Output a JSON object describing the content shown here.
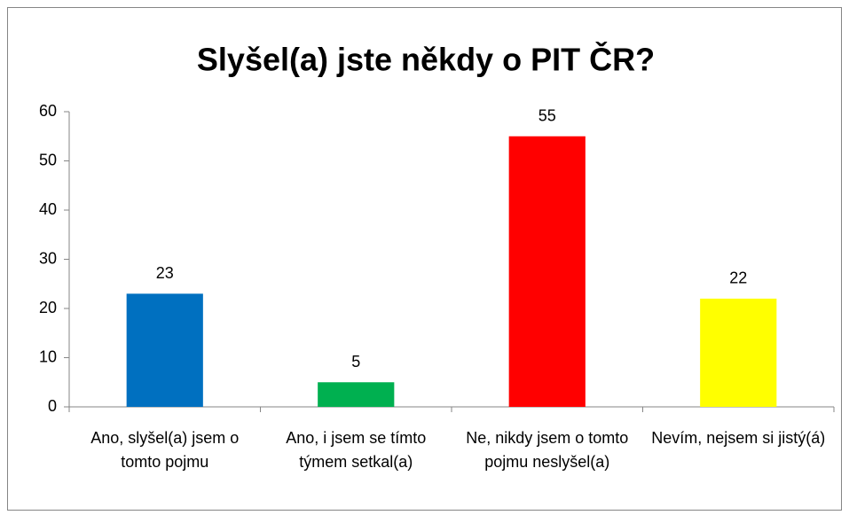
{
  "chart_data": {
    "type": "bar",
    "title": "Slyšel(a) jste někdy o PIT ČR?",
    "categories": [
      "Ano, slyšel(a) jsem o tomto pojmu",
      "Ano, i jsem se tímto týmem setkal(a)",
      "Ne, nikdy jsem o tomto pojmu neslyšel(a)",
      "Nevím, nejsem si jistý(á)"
    ],
    "values": [
      23,
      5,
      55,
      22
    ],
    "colors": [
      "#0070c0",
      "#00b050",
      "#ff0000",
      "#ffff00"
    ],
    "ylim": [
      0,
      60
    ],
    "yticks": [
      0,
      10,
      20,
      30,
      40,
      50,
      60
    ],
    "grid": false
  }
}
